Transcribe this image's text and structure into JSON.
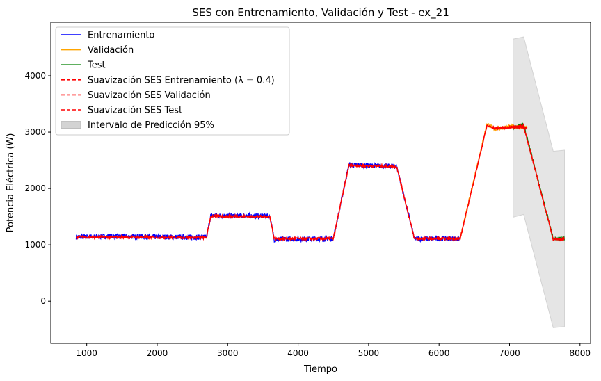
{
  "chart_data": {
    "type": "line",
    "title": "SES con Entrenamiento, Validación y Test - ex_21",
    "xlabel": "Tiempo",
    "ylabel": "Potencia Eléctrica (W)",
    "xlim": [
      490,
      8150
    ],
    "ylim": [
      -750,
      4950
    ],
    "xticks": [
      1000,
      2000,
      3000,
      4000,
      5000,
      6000,
      7000,
      8000
    ],
    "yticks": [
      0,
      1000,
      2000,
      3000,
      4000
    ],
    "grid": false,
    "legend_position": "top-left",
    "legend": [
      {
        "label": "Entrenamiento",
        "color": "#0000ff",
        "style": "solid"
      },
      {
        "label": "Validación",
        "color": "#ffa500",
        "style": "solid"
      },
      {
        "label": "Test",
        "color": "#008000",
        "style": "solid"
      },
      {
        "label": "Suavización SES Entrenamiento (λ = 0.4)",
        "color": "#ff0000",
        "style": "dashed"
      },
      {
        "label": "Suavización SES Validación",
        "color": "#ff0000",
        "style": "dashed"
      },
      {
        "label": "Suavización SES Test",
        "color": "#ff0000",
        "style": "dashed"
      },
      {
        "label": "Intervalo de Predicción 95%",
        "color": "#d3d3d3",
        "style": "patch"
      }
    ],
    "series": [
      {
        "name": "Entrenamiento",
        "color": "#0000ff",
        "noise": 45,
        "points": [
          [
            850,
            1140
          ],
          [
            1300,
            1150
          ],
          [
            2700,
            1135
          ],
          [
            2760,
            1520
          ],
          [
            3600,
            1510
          ],
          [
            3660,
            1100
          ],
          [
            4500,
            1110
          ],
          [
            4720,
            2420
          ],
          [
            5400,
            2390
          ],
          [
            5650,
            1110
          ],
          [
            6300,
            1110
          ]
        ]
      },
      {
        "name": "Validación",
        "color": "#ffa500",
        "noise": 35,
        "points": [
          [
            6300,
            1110
          ],
          [
            6680,
            3150
          ],
          [
            6780,
            3060
          ],
          [
            7050,
            3100
          ],
          [
            7250,
            3080
          ]
        ]
      },
      {
        "name": "Test",
        "color": "#008000",
        "noise": 35,
        "points": [
          [
            7050,
            3080
          ],
          [
            7200,
            3130
          ],
          [
            7620,
            1110
          ],
          [
            7780,
            1110
          ]
        ]
      },
      {
        "name": "Suavización SES Entrenamiento (λ = 0.4)",
        "color": "#ff0000",
        "noise": 22,
        "points": [
          [
            850,
            1140
          ],
          [
            2700,
            1130
          ],
          [
            2760,
            1510
          ],
          [
            3600,
            1500
          ],
          [
            3660,
            1110
          ],
          [
            4500,
            1110
          ],
          [
            4720,
            2410
          ],
          [
            5400,
            2390
          ],
          [
            5650,
            1110
          ],
          [
            6300,
            1110
          ]
        ]
      },
      {
        "name": "Suavización SES Validación",
        "color": "#ff0000",
        "noise": 18,
        "points": [
          [
            6300,
            1110
          ],
          [
            6680,
            3120
          ],
          [
            6780,
            3070
          ],
          [
            7050,
            3090
          ],
          [
            7250,
            3080
          ]
        ]
      },
      {
        "name": "Suavización SES Test",
        "color": "#ff0000",
        "noise": 18,
        "points": [
          [
            7050,
            3080
          ],
          [
            7200,
            3110
          ],
          [
            7620,
            1100
          ],
          [
            7780,
            1100
          ]
        ]
      }
    ],
    "interval": {
      "name": "Intervalo de Predicción 95%",
      "color": "#d3d3d3",
      "upper": [
        [
          7050,
          4650
        ],
        [
          7200,
          4690
        ],
        [
          7620,
          2660
        ],
        [
          7780,
          2680
        ]
      ],
      "lower": [
        [
          7050,
          1490
        ],
        [
          7200,
          1540
        ],
        [
          7620,
          -470
        ],
        [
          7780,
          -450
        ]
      ]
    }
  }
}
